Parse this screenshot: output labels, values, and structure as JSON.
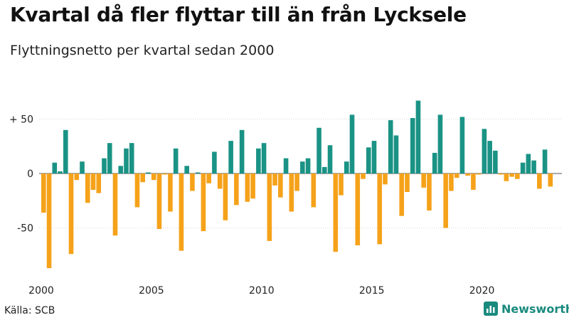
{
  "header": {
    "title": "Kvartal då fler flyttar till än från Lycksele",
    "subtitle": "Flyttningsnetto per kvartal sedan 2000"
  },
  "footer": {
    "source": "Källa: SCB",
    "brand": "Newsworthy"
  },
  "colors": {
    "positive": "#1a9385",
    "negative": "#f5a21a",
    "brand": "#1a8a7e"
  },
  "chart_data": {
    "type": "bar",
    "title": "Kvartal då fler flyttar till än från Lycksele",
    "subtitle": "Flyttningsnetto per kvartal sedan 2000",
    "x_start": "2000 Q1",
    "y_ticks": [
      50,
      0,
      -50
    ],
    "y_tick_labels": [
      "+ 50",
      "0",
      "-50"
    ],
    "x_ticks": [
      2000,
      2005,
      2010,
      2015,
      2020
    ],
    "x_tick_labels": [
      "2000",
      "2005",
      "2010",
      "2015",
      "2020"
    ],
    "ylim": [
      -90,
      70
    ],
    "grid": true,
    "values": [
      -36,
      -87,
      10,
      2,
      40,
      -74,
      -6,
      11,
      -27,
      -15,
      -18,
      14,
      28,
      -57,
      7,
      23,
      28,
      -31,
      -8,
      1,
      -6,
      -51,
      -1,
      -35,
      23,
      -71,
      7,
      -16,
      1,
      -53,
      -9,
      20,
      -14,
      -43,
      30,
      -29,
      40,
      -26,
      -23,
      23,
      28,
      -62,
      -11,
      -22,
      14,
      -35,
      -16,
      11,
      14,
      -31,
      42,
      6,
      26,
      -72,
      -20,
      11,
      54,
      -66,
      -5,
      24,
      30,
      -65,
      -10,
      49,
      35,
      -39,
      -17,
      51,
      67,
      -13,
      -34,
      19,
      54,
      -50,
      -16,
      -4,
      52,
      -2,
      -15,
      -1,
      41,
      30,
      21,
      -1,
      -7,
      -3,
      -5,
      10,
      18,
      12,
      -14,
      22,
      -12
    ]
  }
}
